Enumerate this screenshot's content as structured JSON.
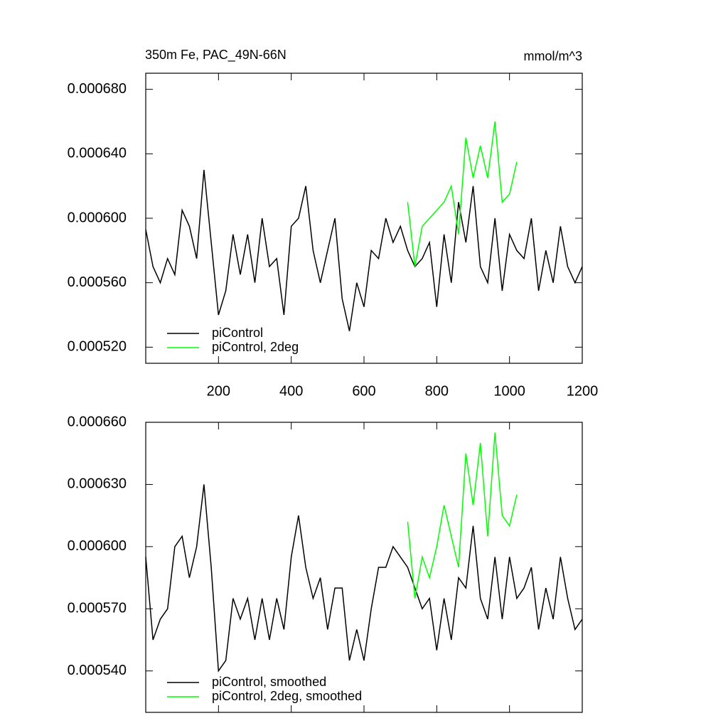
{
  "chart_data": [
    {
      "type": "line",
      "title": "350m Fe, PAC_49N-66N",
      "units": "mmol/m^3",
      "xlim": [
        0,
        1200
      ],
      "xticks": [
        200,
        400,
        600,
        800,
        1000,
        1200
      ],
      "ylim": [
        0.00051,
        0.00069
      ],
      "yticks": [
        {
          "value": 0.00052,
          "label": "0.000520"
        },
        {
          "value": 0.00056,
          "label": "0.000560"
        },
        {
          "value": 0.0006,
          "label": "0.000600"
        },
        {
          "value": 0.00064,
          "label": "0.000640"
        },
        {
          "value": 0.00068,
          "label": "0.000680"
        }
      ],
      "legend": "lower left",
      "series": [
        {
          "name": "piControl",
          "color": "#000000",
          "x": [
            0,
            20,
            40,
            60,
            80,
            100,
            120,
            140,
            160,
            180,
            200,
            220,
            240,
            260,
            280,
            300,
            320,
            340,
            360,
            380,
            400,
            420,
            440,
            460,
            480,
            500,
            520,
            540,
            560,
            580,
            600,
            620,
            640,
            660,
            680,
            700,
            720,
            740,
            760,
            780,
            800,
            820,
            840,
            860,
            880,
            900,
            920,
            940,
            960,
            980,
            1000,
            1020,
            1040,
            1060,
            1080,
            1100,
            1120,
            1140,
            1160,
            1180,
            1200
          ],
          "values": [
            0.000593,
            0.00057,
            0.00056,
            0.000575,
            0.000565,
            0.000605,
            0.000595,
            0.000575,
            0.00063,
            0.000585,
            0.00054,
            0.000555,
            0.00059,
            0.000565,
            0.00059,
            0.00056,
            0.0006,
            0.00057,
            0.000575,
            0.00054,
            0.000595,
            0.0006,
            0.00062,
            0.00058,
            0.00056,
            0.00058,
            0.0006,
            0.00055,
            0.00053,
            0.00056,
            0.000545,
            0.00058,
            0.000575,
            0.0006,
            0.000585,
            0.000595,
            0.00058,
            0.00057,
            0.000575,
            0.000585,
            0.000545,
            0.00059,
            0.00056,
            0.00061,
            0.000585,
            0.00062,
            0.00057,
            0.00056,
            0.0006,
            0.000555,
            0.00059,
            0.00058,
            0.000575,
            0.0006,
            0.000555,
            0.00058,
            0.00056,
            0.000595,
            0.00057,
            0.00056,
            0.00057
          ]
        },
        {
          "name": "piControl, 2deg",
          "color": "#00ff00",
          "x": [
            720,
            740,
            760,
            780,
            800,
            820,
            840,
            860,
            880,
            900,
            920,
            940,
            960,
            980,
            1000,
            1020
          ],
          "values": [
            0.00061,
            0.00057,
            0.000595,
            0.0006,
            0.000605,
            0.00061,
            0.00062,
            0.00059,
            0.00065,
            0.000625,
            0.000645,
            0.000625,
            0.00066,
            0.00061,
            0.000615,
            0.000635
          ]
        }
      ]
    },
    {
      "type": "line",
      "xlim": [
        0,
        1200
      ],
      "xticks": [
        200,
        400,
        600,
        800,
        1000,
        1200
      ],
      "ylim": [
        0.00052,
        0.00066
      ],
      "yticks": [
        {
          "value": 0.00054,
          "label": "0.000540"
        },
        {
          "value": 0.00057,
          "label": "0.000570"
        },
        {
          "value": 0.0006,
          "label": "0.000600"
        },
        {
          "value": 0.00063,
          "label": "0.000630"
        },
        {
          "value": 0.00066,
          "label": "0.000660"
        }
      ],
      "legend": "lower left",
      "series": [
        {
          "name": "piControl, smoothed",
          "color": "#000000",
          "x": [
            0,
            20,
            40,
            60,
            80,
            100,
            120,
            140,
            160,
            180,
            200,
            220,
            240,
            260,
            280,
            300,
            320,
            340,
            360,
            380,
            400,
            420,
            440,
            460,
            480,
            500,
            520,
            540,
            560,
            580,
            600,
            620,
            640,
            660,
            680,
            700,
            720,
            740,
            760,
            780,
            800,
            820,
            840,
            860,
            880,
            900,
            920,
            940,
            960,
            980,
            1000,
            1020,
            1040,
            1060,
            1080,
            1100,
            1120,
            1140,
            1160,
            1180,
            1200
          ],
          "values": [
            0.000595,
            0.000555,
            0.000565,
            0.00057,
            0.0006,
            0.000605,
            0.000585,
            0.0006,
            0.00063,
            0.00059,
            0.00054,
            0.000545,
            0.000575,
            0.000565,
            0.000575,
            0.000555,
            0.000575,
            0.000555,
            0.000575,
            0.00056,
            0.000595,
            0.000615,
            0.00059,
            0.000575,
            0.000585,
            0.00056,
            0.00058,
            0.00058,
            0.000545,
            0.00056,
            0.000545,
            0.00057,
            0.00059,
            0.00059,
            0.0006,
            0.000595,
            0.00059,
            0.00058,
            0.00057,
            0.000575,
            0.00055,
            0.000575,
            0.000555,
            0.000585,
            0.00058,
            0.00061,
            0.000575,
            0.000565,
            0.000595,
            0.000565,
            0.000595,
            0.000575,
            0.00058,
            0.00059,
            0.00056,
            0.00058,
            0.000565,
            0.000595,
            0.000575,
            0.00056,
            0.000565
          ]
        },
        {
          "name": "piControl, 2deg, smoothed",
          "color": "#00ff00",
          "x": [
            720,
            740,
            760,
            780,
            800,
            820,
            840,
            860,
            880,
            900,
            920,
            940,
            960,
            980,
            1000,
            1020
          ],
          "values": [
            0.000612,
            0.000575,
            0.000595,
            0.000585,
            0.0006,
            0.00062,
            0.000605,
            0.00059,
            0.000645,
            0.00062,
            0.00065,
            0.000605,
            0.000655,
            0.000615,
            0.00061,
            0.000625
          ]
        }
      ]
    }
  ]
}
